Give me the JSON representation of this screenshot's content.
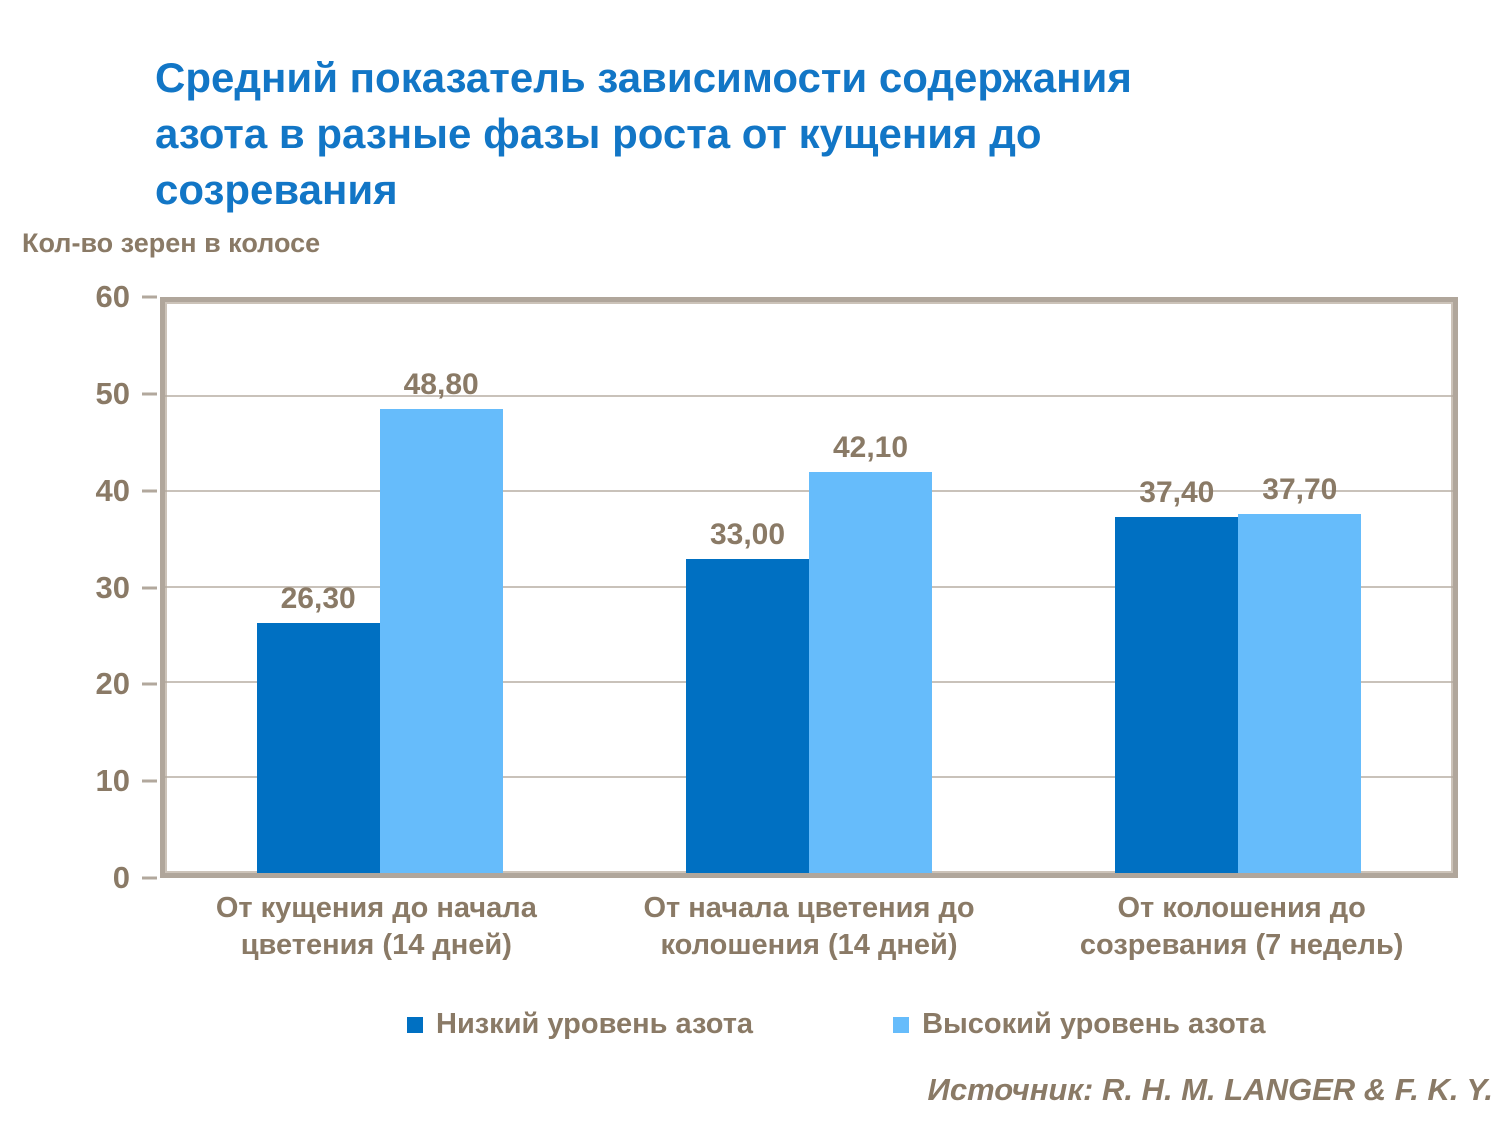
{
  "title": {
    "lines": [
      "Средний показатель зависимости содержания",
      "азота в разные фазы роста от кущения до",
      "созревания"
    ]
  },
  "source_credit": "Источник: R. H. M. LANGER & F. K. Y.",
  "colors": {
    "title_blue": "#1276c6",
    "text_brown": "#8a7a66",
    "low_series_blue": "#0070c2",
    "high_series_blue": "#66bcfb",
    "plot_frame": "#b0a69b",
    "gridline": "#b2a89d",
    "background": "#ffffff"
  },
  "chart_data": {
    "type": "bar",
    "title": "Средний показатель зависимости содержания азота в разные фазы роста от кущения до созревания",
    "xlabel": "",
    "ylabel": "Кол-во зерен в колосе",
    "ylim": [
      0,
      60
    ],
    "yticks": [
      0,
      10,
      20,
      30,
      40,
      50,
      60
    ],
    "grid": "horizontal",
    "legend_position": "bottom",
    "categories": [
      "От кущения до начала цветения (14 дней)",
      "От начала цветения до колошения (14 дней)",
      "От колошения до созревания (7 недель)"
    ],
    "category_lines": [
      [
        "От кущения до начала",
        "цветения (14 дней)"
      ],
      [
        "От начала цветения до",
        "колошения (14 дней)"
      ],
      [
        "От колошения до",
        "созревания (7 недель)"
      ]
    ],
    "series": [
      {
        "name": "Низкий уровень азота",
        "color": "#0070c2",
        "values": [
          26.3,
          33.0,
          37.4
        ],
        "labels": [
          "26,30",
          "33,00",
          "37,40"
        ]
      },
      {
        "name": "Высокий уровень азота",
        "color": "#66bcfb",
        "values": [
          48.8,
          42.1,
          37.7
        ],
        "labels": [
          "48,80",
          "42,10",
          "37,70"
        ]
      }
    ]
  }
}
